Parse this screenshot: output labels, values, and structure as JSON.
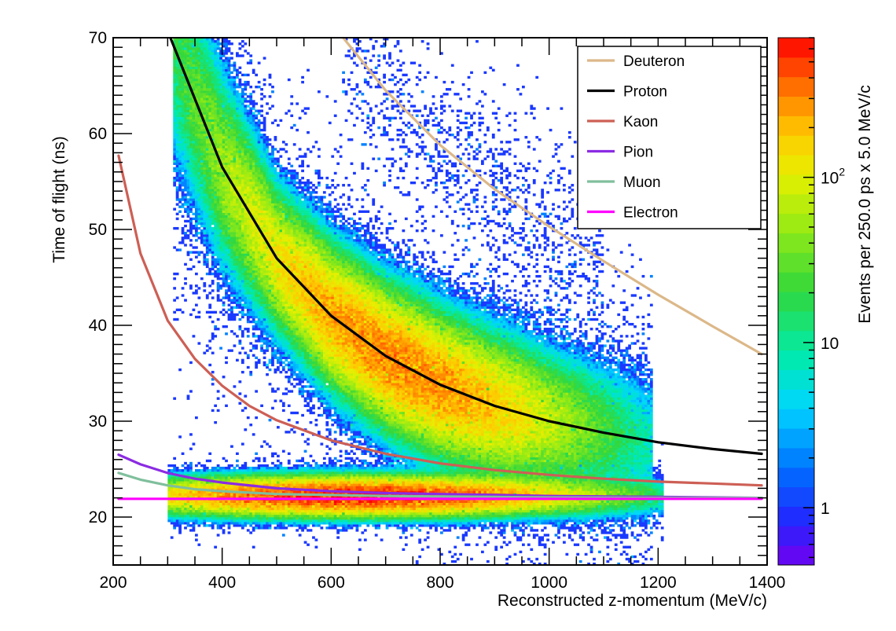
{
  "chart_data": {
    "type": "heatmap",
    "title": "",
    "xlabel": "Reconstructed z-momentum (MeV/c)",
    "ylabel": "Time of flight (ns)",
    "zlabel": "Events per 250.0 ps x 5.0 MeV/c",
    "xlim": [
      200,
      1400
    ],
    "ylim": [
      15,
      70
    ],
    "zscale": "log",
    "zlim": [
      0.45,
      700
    ],
    "x_ticks": [
      "200",
      "400",
      "600",
      "800",
      "1000",
      "1200",
      "1400"
    ],
    "y_ticks": [
      "20",
      "30",
      "40",
      "50",
      "60",
      "70"
    ],
    "z_ticks": [
      {
        "value": 1,
        "base": "1",
        "exp": ""
      },
      {
        "value": 10,
        "base": "10",
        "exp": ""
      },
      {
        "value": 100,
        "base": "10",
        "exp": "2"
      }
    ],
    "grid": false,
    "legend_position": "top-right",
    "clusters": [
      {
        "name": "proton band",
        "along_curve": "Proton",
        "x_range": [
          330,
          1150
        ],
        "peak_x": 720,
        "peak_count": 300
      },
      {
        "name": "light particle band",
        "y_center": 22.2,
        "x_range": [
          310,
          1190
        ],
        "peak_x": 650,
        "peak_count": 600
      },
      {
        "name": "deuteron band",
        "along_curve": "Deuteron",
        "x_range": [
          620,
          1100
        ],
        "peak_count": 2
      }
    ],
    "series": [
      {
        "name": "Deuteron",
        "color": "#dcb889",
        "x": [
          622,
          700,
          800,
          900,
          1000,
          1100,
          1200,
          1300,
          1390
        ],
        "y": [
          70,
          64.5,
          58.8,
          54.2,
          50.3,
          46.7,
          43.2,
          39.9,
          37.0
        ]
      },
      {
        "name": "Proton",
        "color": "#000000",
        "x": [
          305,
          400,
          500,
          600,
          700,
          800,
          900,
          1000,
          1100,
          1200,
          1300,
          1390
        ],
        "y": [
          70,
          56.5,
          47.0,
          41.0,
          36.8,
          33.8,
          31.6,
          30.0,
          28.8,
          27.8,
          27.1,
          26.6
        ]
      },
      {
        "name": "Kaon",
        "color": "#cd5f55",
        "x": [
          210,
          250,
          300,
          350,
          400,
          450,
          500,
          600,
          700,
          800,
          900,
          1000,
          1100,
          1200,
          1300,
          1390
        ],
        "y": [
          57.7,
          47.5,
          40.5,
          36.5,
          33.7,
          31.6,
          30.1,
          28.0,
          26.6,
          25.6,
          24.9,
          24.4,
          24.0,
          23.7,
          23.5,
          23.3
        ]
      },
      {
        "name": "Pion",
        "color": "#8b2be2",
        "x": [
          210,
          250,
          300,
          350,
          400,
          500,
          600,
          700,
          800,
          900,
          1000,
          1100,
          1200,
          1300,
          1390
        ],
        "y": [
          26.5,
          25.5,
          24.6,
          24.0,
          23.6,
          23.0,
          22.7,
          22.5,
          22.4,
          22.3,
          22.2,
          22.15,
          22.1,
          22.05,
          22.0
        ]
      },
      {
        "name": "Muon",
        "color": "#7fbf9c",
        "x": [
          210,
          250,
          300,
          350,
          400,
          500,
          600,
          700,
          800,
          900,
          1000,
          1200,
          1390
        ],
        "y": [
          24.6,
          23.9,
          23.3,
          22.9,
          22.7,
          22.4,
          22.3,
          22.2,
          22.15,
          22.1,
          22.05,
          22.0,
          22.0
        ]
      },
      {
        "name": "Electron",
        "color": "#ff00ff",
        "x": [
          210,
          1390
        ],
        "y": [
          21.9,
          21.9
        ]
      }
    ]
  }
}
